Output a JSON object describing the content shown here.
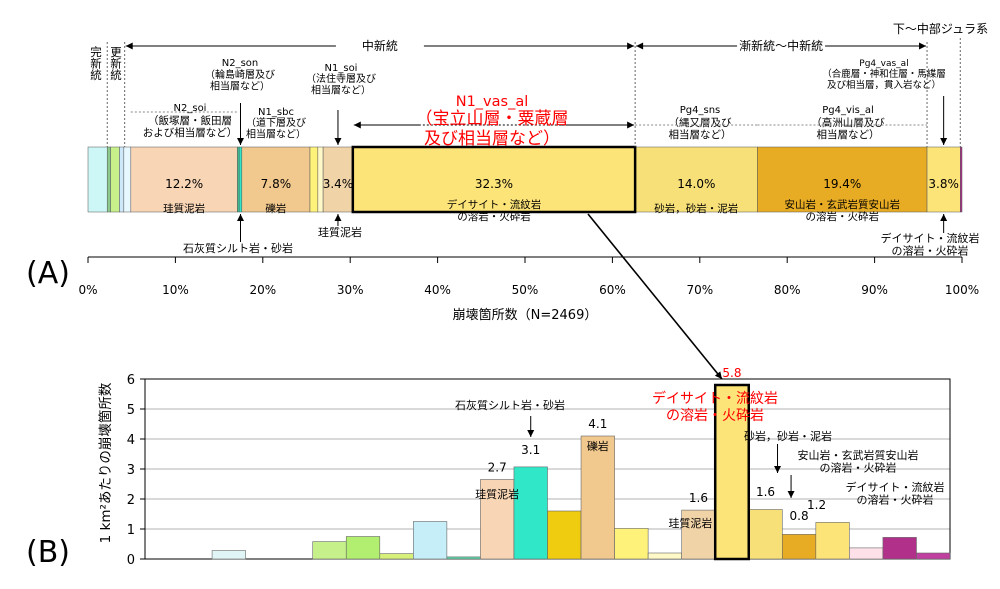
{
  "chart_data": [
    {
      "type": "bar",
      "orientation": "stacked-horizontal-100%",
      "panel_label": "(A)",
      "xlabel": "崩壊箇所数（N=2469）",
      "xlim": [
        0,
        100
      ],
      "x_ticks": [
        "0%",
        "10%",
        "20%",
        "30%",
        "40%",
        "50%",
        "60%",
        "70%",
        "80%",
        "90%",
        "100%"
      ],
      "segments": [
        {
          "start": 0,
          "end": 2.2,
          "color": "#cdf6f6"
        },
        {
          "start": 2.2,
          "end": 2.6,
          "color": "#8ec98e"
        },
        {
          "start": 2.6,
          "end": 3.6,
          "color": "#c8f08a"
        },
        {
          "start": 3.6,
          "end": 4.1,
          "color": "#cde8f8"
        },
        {
          "start": 4.1,
          "end": 4.9,
          "color": "#e8f8ff"
        },
        {
          "start": 4.9,
          "end": 17.1,
          "color": "#f7d5b5",
          "value_label": "12.2%",
          "rock": "珪質泥岩"
        },
        {
          "start": 17.1,
          "end": 17.3,
          "color": "#40c090"
        },
        {
          "start": 17.3,
          "end": 17.6,
          "color": "#30e8c8"
        },
        {
          "start": 17.6,
          "end": 25.4,
          "color": "#f1c88e",
          "value_label": "7.8%",
          "rock": "礫岩"
        },
        {
          "start": 25.4,
          "end": 26.3,
          "color": "#fff27a"
        },
        {
          "start": 26.3,
          "end": 26.9,
          "color": "#fff9c8"
        },
        {
          "start": 26.9,
          "end": 30.3,
          "color": "#f1d3a8",
          "value_label": "3.4%"
        },
        {
          "start": 30.3,
          "end": 62.6,
          "color": "#fde479",
          "value_label": "32.3%",
          "rock": "デイサイト・流紋岩\nの溶岩・火砕岩",
          "highlight": true
        },
        {
          "start": 62.6,
          "end": 76.6,
          "color": "#f7e078",
          "value_label": "14.0%",
          "rock": "砂岩，砂岩・泥岩"
        },
        {
          "start": 76.6,
          "end": 96.0,
          "color": "#e8ac24",
          "value_label": "19.4%",
          "rock": "安山岩・玄武岩質安山岩\nの溶岩・火砕岩"
        },
        {
          "start": 96.0,
          "end": 99.8,
          "color": "#fde479",
          "value_label": "3.8%"
        },
        {
          "start": 99.8,
          "end": 100,
          "color": "#b0308a"
        }
      ],
      "epochs": [
        {
          "label": "完新統",
          "from": 0,
          "to": 2.2
        },
        {
          "label": "更新統",
          "from": 2.2,
          "to": 4.2
        },
        {
          "label": "中新統",
          "from": 4.2,
          "to": 62.6
        },
        {
          "label": "漸新統～中新統",
          "from": 62.6,
          "to": 96.0
        },
        {
          "label": "下～中部ジュラ系",
          "from": 96.0,
          "to": 100
        }
      ],
      "units": [
        {
          "code": "N2_soi",
          "desc": "（飯塚層・飯田層\nおよび相当層など）"
        },
        {
          "code": "N2_son",
          "desc": "（輪島崎層及び\n相当層など）"
        },
        {
          "code": "N1_sbc",
          "desc": "（道下層及び\n相当層など）"
        },
        {
          "code": "N1_soi",
          "desc": "（法住寺層及び\n相当層など）"
        },
        {
          "code": "N1_vas_al",
          "desc": "（宝立山層・粟蔵層\n及び相当層など）"
        },
        {
          "code": "Pg4_sns",
          "desc": "（縄又層及び\n相当層など）"
        },
        {
          "code": "Pg4_vis_al",
          "desc": "（高洲山層及び\n相当層など）"
        },
        {
          "code": "Pg4_vas_al",
          "desc": "（合鹿層・神和住層・馬緤層\n及び相当層，貫入岩など）"
        }
      ],
      "callouts": [
        {
          "text": "石灰質シルト岩・砂岩"
        },
        {
          "text": "珪質泥岩"
        },
        {
          "text": "デイサイト・流紋岩\nの溶岩・火砕岩"
        }
      ]
    },
    {
      "type": "bar",
      "panel_label": "(B)",
      "ylabel": "1 km²あたりの崩壊箇所数",
      "ylim": [
        0,
        6
      ],
      "y_ticks": [
        "0",
        "1",
        "2",
        "3",
        "4",
        "5",
        "6"
      ],
      "values": [
        0,
        0,
        0.28,
        0,
        0,
        0.58,
        0.75,
        0.18,
        1.25,
        0.07,
        2.65,
        3.07,
        1.6,
        4.1,
        1.02,
        0.2,
        1.63,
        5.8,
        1.65,
        0.82,
        1.22,
        0.37,
        0.72,
        0.2
      ],
      "colors": [
        "#ffffff",
        "#ffffff",
        "#e0f6f6",
        "#ffffff",
        "#ffffff",
        "#c6f08a",
        "#b2ee70",
        "#d6f07a",
        "#c6eef8",
        "#5ad8a8",
        "#f7d5b5",
        "#30e8c8",
        "#f0cc10",
        "#f1c88e",
        "#fff27a",
        "#fff9c8",
        "#f1d3a8",
        "#fde479",
        "#f7e078",
        "#e8ac24",
        "#fde479",
        "#fde0e8",
        "#b0308a",
        "#c040a0"
      ],
      "highlight_index": 17,
      "value_labels": [
        {
          "bar": 10,
          "text": "2.7"
        },
        {
          "bar": 11,
          "text": "3.1"
        },
        {
          "bar": 13,
          "text": "4.1"
        },
        {
          "bar": 16,
          "text": "1.6"
        },
        {
          "bar": 17,
          "text": "5.8"
        },
        {
          "bar": 18,
          "text": "1.6"
        },
        {
          "bar": 19,
          "text": "0.8"
        },
        {
          "bar": 20,
          "text": "1.2"
        }
      ],
      "annotations": [
        {
          "bar": 10,
          "text": "珪質泥岩"
        },
        {
          "bar": 11,
          "text": "石灰質シルト岩・砂岩"
        },
        {
          "bar": 13,
          "text": "礫岩"
        },
        {
          "bar": 16,
          "text": "珪質泥岩"
        },
        {
          "bar": 17,
          "text": "デイサイト・流紋岩\nの溶岩・火砕岩"
        },
        {
          "bar": 18,
          "text": "砂岩，砂岩・泥岩"
        },
        {
          "bar": 19,
          "text": "安山岩・玄武岩質安山岩\nの溶岩・火砕岩"
        },
        {
          "bar": 20,
          "text": "デイサイト・流紋岩\nの溶岩・火砕岩"
        }
      ]
    }
  ],
  "theme": {
    "highlight": "#ff0000",
    "axis": "#000000",
    "grid": "#808080"
  }
}
